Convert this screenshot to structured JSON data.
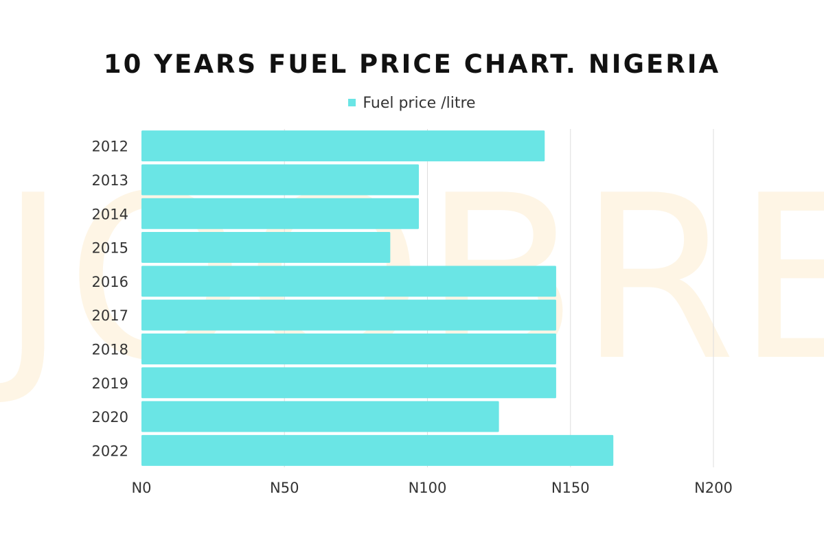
{
  "chart_data": {
    "type": "bar",
    "orientation": "horizontal",
    "title": "10 YEARS FUEL PRICE CHART. NIGERIA",
    "legend": {
      "position": "top-center"
    },
    "categories": [
      "2012",
      "2013",
      "2014",
      "2015",
      "2016",
      "2017",
      "2018",
      "2019",
      "2020",
      "2022"
    ],
    "series": [
      {
        "name": "Fuel price /litre",
        "color": "#6ae5e5",
        "values": [
          141,
          97,
          97,
          87,
          145,
          145,
          145,
          145,
          125,
          165
        ]
      }
    ],
    "xlim": [
      0,
      200
    ],
    "x_ticks": [
      0,
      50,
      100,
      150,
      200
    ],
    "x_tick_labels": [
      "N0",
      "N50",
      "N100",
      "N150",
      "N200"
    ],
    "grid": {
      "vertical": true,
      "horizontal": false,
      "color": "#dddddd"
    },
    "watermark": {
      "text": "JOOBRE",
      "color": "#fde9c6"
    }
  }
}
